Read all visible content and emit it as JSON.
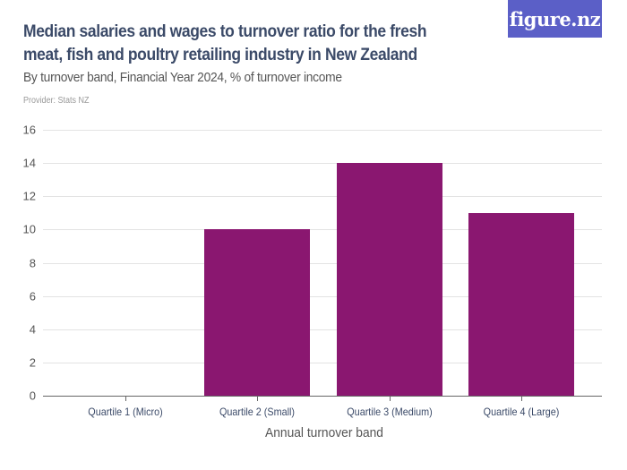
{
  "logo": {
    "text": "figure.nz",
    "color": "#5b5fc7"
  },
  "header": {
    "title": "Median salaries and wages to turnover ratio for the fresh meat, fish and poultry retailing industry in New Zealand",
    "subtitle": "By turnover band, Financial Year 2024, % of turnover income",
    "provider": "Provider: Stats NZ"
  },
  "axis": {
    "y_ticks": [
      "0",
      "2",
      "4",
      "6",
      "8",
      "10",
      "12",
      "14",
      "16"
    ],
    "x_labels": [
      "Quartile 1 (Micro)",
      "Quartile 2 (Small)",
      "Quartile 3 (Medium)",
      "Quartile 4 (Large)"
    ],
    "x_title": "Annual turnover band"
  },
  "chart_data": {
    "type": "bar",
    "title": "Median salaries and wages to turnover ratio for the fresh meat, fish and poultry retailing industry in New Zealand",
    "subtitle": "By turnover band, Financial Year 2024, % of turnover income",
    "categories": [
      "Quartile 1 (Micro)",
      "Quartile 2 (Small)",
      "Quartile 3 (Medium)",
      "Quartile 4 (Large)"
    ],
    "values": [
      null,
      10,
      14,
      11
    ],
    "xlabel": "Annual turnover band",
    "ylabel": "% of turnover income",
    "ylim": [
      0,
      16
    ],
    "yticks": [
      0,
      2,
      4,
      6,
      8,
      10,
      12,
      14,
      16
    ],
    "grid": true,
    "bar_color": "#8a1770",
    "legend": null
  }
}
